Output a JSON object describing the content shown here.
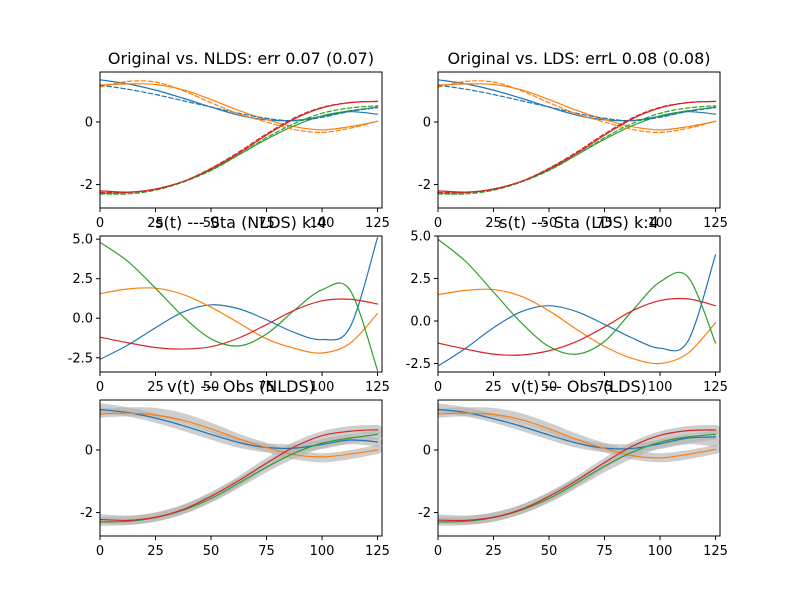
{
  "chart_data": [
    {
      "type": "line",
      "title": "Original vs. NLDS: err 0.07 (0.07)",
      "xlim": [
        0,
        127
      ],
      "ylim": [
        -2.75,
        1.6
      ],
      "xticks": [
        0,
        25,
        50,
        75,
        100,
        125
      ],
      "yticks": [
        -2,
        0
      ],
      "x": [
        0,
        12.5,
        25,
        37.5,
        50,
        62.5,
        75,
        87.5,
        100,
        112.5,
        125
      ],
      "series": [
        {
          "color": "#1f77b4",
          "style": "solid",
          "values": [
            1.35,
            1.22,
            1.02,
            0.76,
            0.48,
            0.22,
            0.07,
            0.05,
            0.18,
            0.33,
            0.25
          ]
        },
        {
          "color": "#ff7f0e",
          "style": "solid",
          "values": [
            1.18,
            1.22,
            1.2,
            1.03,
            0.72,
            0.37,
            0.08,
            -0.15,
            -0.25,
            -0.15,
            0.02
          ]
        },
        {
          "color": "#2ca02c",
          "style": "solid",
          "values": [
            -2.28,
            -2.26,
            -2.14,
            -1.9,
            -1.53,
            -1.05,
            -0.55,
            -0.12,
            0.2,
            0.36,
            0.48
          ]
        },
        {
          "color": "#d62728",
          "style": "solid",
          "values": [
            -2.2,
            -2.24,
            -2.15,
            -1.9,
            -1.5,
            -1.0,
            -0.42,
            0.1,
            0.45,
            0.62,
            0.66
          ]
        },
        {
          "color": "#1f77b4",
          "style": "dashed",
          "values": [
            1.18,
            1.05,
            0.88,
            0.68,
            0.48,
            0.28,
            0.12,
            0.04,
            0.15,
            0.34,
            0.46
          ]
        },
        {
          "color": "#ff7f0e",
          "style": "dashed",
          "values": [
            1.12,
            1.3,
            1.28,
            1.0,
            0.62,
            0.26,
            0.0,
            -0.24,
            -0.33,
            -0.2,
            0.03
          ]
        },
        {
          "color": "#2ca02c",
          "style": "dashed",
          "values": [
            -2.3,
            -2.3,
            -2.18,
            -1.92,
            -1.55,
            -1.05,
            -0.5,
            -0.05,
            0.28,
            0.45,
            0.52
          ]
        },
        {
          "color": "#d62728",
          "style": "dashed",
          "values": [
            -2.25,
            -2.25,
            -2.16,
            -1.9,
            -1.48,
            -0.96,
            -0.38,
            0.13,
            0.47,
            0.62,
            0.66
          ]
        }
      ]
    },
    {
      "type": "line",
      "title": "Original vs. LDS: errL 0.08 (0.08)",
      "xlim": [
        0,
        127
      ],
      "ylim": [
        -2.75,
        1.6
      ],
      "xticks": [
        0,
        25,
        50,
        75,
        100,
        125
      ],
      "yticks": [
        -2,
        0
      ],
      "x": [
        0,
        12.5,
        25,
        37.5,
        50,
        62.5,
        75,
        87.5,
        100,
        112.5,
        125
      ],
      "series": [
        {
          "color": "#1f77b4",
          "style": "solid",
          "values": [
            1.35,
            1.22,
            1.02,
            0.76,
            0.48,
            0.22,
            0.07,
            0.05,
            0.18,
            0.33,
            0.25
          ]
        },
        {
          "color": "#ff7f0e",
          "style": "solid",
          "values": [
            1.18,
            1.22,
            1.2,
            1.03,
            0.72,
            0.37,
            0.08,
            -0.15,
            -0.25,
            -0.15,
            0.02
          ]
        },
        {
          "color": "#2ca02c",
          "style": "solid",
          "values": [
            -2.28,
            -2.26,
            -2.14,
            -1.9,
            -1.53,
            -1.05,
            -0.55,
            -0.12,
            0.2,
            0.36,
            0.48
          ]
        },
        {
          "color": "#d62728",
          "style": "solid",
          "values": [
            -2.2,
            -2.24,
            -2.15,
            -1.9,
            -1.5,
            -1.0,
            -0.42,
            0.1,
            0.45,
            0.62,
            0.66
          ]
        },
        {
          "color": "#1f77b4",
          "style": "dashed",
          "values": [
            1.18,
            1.05,
            0.88,
            0.68,
            0.48,
            0.28,
            0.12,
            0.04,
            0.15,
            0.34,
            0.46
          ]
        },
        {
          "color": "#ff7f0e",
          "style": "dashed",
          "values": [
            1.12,
            1.3,
            1.28,
            1.0,
            0.62,
            0.26,
            0.0,
            -0.24,
            -0.33,
            -0.2,
            0.03
          ]
        },
        {
          "color": "#2ca02c",
          "style": "dashed",
          "values": [
            -2.3,
            -2.3,
            -2.18,
            -1.92,
            -1.55,
            -1.05,
            -0.5,
            -0.05,
            0.28,
            0.45,
            0.52
          ]
        },
        {
          "color": "#d62728",
          "style": "dashed",
          "values": [
            -2.25,
            -2.25,
            -2.16,
            -1.9,
            -1.48,
            -0.96,
            -0.38,
            0.13,
            0.47,
            0.62,
            0.66
          ]
        }
      ]
    },
    {
      "type": "line",
      "title": "s(t) --- Sta (NLDS) k:4",
      "xlim": [
        0,
        127
      ],
      "ylim": [
        -3.4,
        5.2
      ],
      "xticks": [
        0,
        25,
        50,
        75,
        100,
        125
      ],
      "yticks": [
        -2.5,
        0.0,
        2.5,
        5.0
      ],
      "x": [
        0,
        12.5,
        25,
        37.5,
        50,
        62.5,
        75,
        87.5,
        100,
        112.5,
        125
      ],
      "series": [
        {
          "color": "#1f77b4",
          "values": [
            -2.6,
            -1.7,
            -0.6,
            0.4,
            0.85,
            0.6,
            -0.1,
            -0.9,
            -1.35,
            -0.6,
            5.1
          ]
        },
        {
          "color": "#ff7f0e",
          "values": [
            1.55,
            1.85,
            1.9,
            1.5,
            0.7,
            -0.3,
            -1.3,
            -1.9,
            -2.2,
            -1.6,
            0.3
          ]
        },
        {
          "color": "#2ca02c",
          "values": [
            4.8,
            3.6,
            1.9,
            0.1,
            -1.3,
            -1.75,
            -1.0,
            0.5,
            1.8,
            1.8,
            -3.3
          ]
        },
        {
          "color": "#d62728",
          "values": [
            -1.2,
            -1.55,
            -1.85,
            -1.95,
            -1.8,
            -1.25,
            -0.4,
            0.5,
            1.1,
            1.2,
            0.9
          ]
        }
      ]
    },
    {
      "type": "line",
      "title": "s(t) --- Sta (LDS) k:4",
      "xlim": [
        0,
        127
      ],
      "ylim": [
        -3.0,
        5.0
      ],
      "xticks": [
        0,
        25,
        50,
        75,
        100,
        125
      ],
      "yticks": [
        -2.5,
        0.0,
        2.5,
        5.0
      ],
      "x": [
        0,
        12.5,
        25,
        37.5,
        50,
        62.5,
        75,
        87.5,
        100,
        112.5,
        125
      ],
      "series": [
        {
          "color": "#1f77b4",
          "values": [
            -2.65,
            -1.6,
            -0.4,
            0.55,
            0.9,
            0.55,
            -0.2,
            -1.0,
            -1.6,
            -1.2,
            3.9
          ]
        },
        {
          "color": "#ff7f0e",
          "values": [
            1.55,
            1.8,
            1.85,
            1.45,
            0.6,
            -0.5,
            -1.5,
            -2.2,
            -2.5,
            -1.9,
            -0.1
          ]
        },
        {
          "color": "#2ca02c",
          "values": [
            4.8,
            3.5,
            1.7,
            -0.1,
            -1.5,
            -1.95,
            -1.2,
            0.6,
            2.3,
            2.6,
            -1.3
          ]
        },
        {
          "color": "#d62728",
          "values": [
            -1.3,
            -1.65,
            -1.95,
            -2.0,
            -1.75,
            -1.2,
            -0.35,
            0.6,
            1.2,
            1.3,
            0.9
          ]
        }
      ]
    },
    {
      "type": "line",
      "title": "v(t) --- Obs (NLDS)",
      "xlim": [
        0,
        127
      ],
      "ylim": [
        -2.75,
        1.6
      ],
      "xticks": [
        0,
        25,
        50,
        75,
        100,
        125
      ],
      "yticks": [
        -2,
        0
      ],
      "x": [
        0,
        12.5,
        25,
        37.5,
        50,
        62.5,
        75,
        87.5,
        100,
        112.5,
        125
      ],
      "series": [
        {
          "color": "#b3b3b3",
          "style": "band",
          "values": [
            1.35,
            1.22,
            1.02,
            0.76,
            0.48,
            0.22,
            0.07,
            0.05,
            0.18,
            0.33,
            0.25
          ]
        },
        {
          "color": "#b3b3b3",
          "style": "band",
          "values": [
            1.18,
            1.22,
            1.2,
            1.03,
            0.72,
            0.37,
            0.08,
            -0.15,
            -0.25,
            -0.15,
            0.02
          ]
        },
        {
          "color": "#b3b3b3",
          "style": "band",
          "values": [
            -2.28,
            -2.26,
            -2.14,
            -1.9,
            -1.53,
            -1.05,
            -0.55,
            -0.12,
            0.2,
            0.36,
            0.48
          ]
        },
        {
          "color": "#b3b3b3",
          "style": "band",
          "values": [
            -2.2,
            -2.24,
            -2.15,
            -1.9,
            -1.5,
            -1.0,
            -0.42,
            0.1,
            0.45,
            0.62,
            0.66
          ]
        },
        {
          "color": "#1f77b4",
          "values": [
            1.3,
            1.2,
            1.02,
            0.78,
            0.5,
            0.24,
            0.08,
            0.06,
            0.18,
            0.32,
            0.26
          ]
        },
        {
          "color": "#ff7f0e",
          "values": [
            1.15,
            1.18,
            1.12,
            0.95,
            0.68,
            0.36,
            0.08,
            -0.15,
            -0.22,
            -0.13,
            0.0
          ]
        },
        {
          "color": "#2ca02c",
          "values": [
            -2.3,
            -2.28,
            -2.16,
            -1.92,
            -1.55,
            -1.06,
            -0.55,
            -0.1,
            0.22,
            0.38,
            0.5
          ]
        },
        {
          "color": "#d62728",
          "values": [
            -2.22,
            -2.25,
            -2.15,
            -1.9,
            -1.48,
            -0.98,
            -0.42,
            0.1,
            0.46,
            0.6,
            0.65
          ]
        }
      ]
    },
    {
      "type": "line",
      "title": "v(t) --- Obs (LDS)",
      "xlim": [
        0,
        127
      ],
      "ylim": [
        -2.75,
        1.6
      ],
      "xticks": [
        0,
        25,
        50,
        75,
        100,
        125
      ],
      "yticks": [
        -2,
        0
      ],
      "x": [
        0,
        12.5,
        25,
        37.5,
        50,
        62.5,
        75,
        87.5,
        100,
        112.5,
        125
      ],
      "series": [
        {
          "color": "#b3b3b3",
          "style": "band",
          "values": [
            1.35,
            1.22,
            1.02,
            0.76,
            0.48,
            0.22,
            0.07,
            0.05,
            0.18,
            0.33,
            0.25
          ]
        },
        {
          "color": "#b3b3b3",
          "style": "band",
          "values": [
            1.18,
            1.22,
            1.2,
            1.03,
            0.72,
            0.37,
            0.08,
            -0.15,
            -0.25,
            -0.15,
            0.02
          ]
        },
        {
          "color": "#b3b3b3",
          "style": "band",
          "values": [
            -2.28,
            -2.26,
            -2.14,
            -1.9,
            -1.53,
            -1.05,
            -0.55,
            -0.12,
            0.2,
            0.36,
            0.48
          ]
        },
        {
          "color": "#b3b3b3",
          "style": "band",
          "values": [
            -2.2,
            -2.24,
            -2.15,
            -1.9,
            -1.5,
            -1.0,
            -0.42,
            0.1,
            0.45,
            0.62,
            0.66
          ]
        },
        {
          "color": "#1f77b4",
          "values": [
            1.3,
            1.2,
            1.0,
            0.76,
            0.48,
            0.22,
            0.06,
            0.05,
            0.2,
            0.38,
            0.42
          ]
        },
        {
          "color": "#ff7f0e",
          "values": [
            1.15,
            1.18,
            1.14,
            0.97,
            0.68,
            0.34,
            0.05,
            -0.18,
            -0.25,
            -0.14,
            0.02
          ]
        },
        {
          "color": "#2ca02c",
          "values": [
            -2.3,
            -2.28,
            -2.16,
            -1.92,
            -1.55,
            -1.05,
            -0.52,
            -0.07,
            0.25,
            0.42,
            0.5
          ]
        },
        {
          "color": "#d62728",
          "values": [
            -2.24,
            -2.25,
            -2.15,
            -1.9,
            -1.48,
            -0.97,
            -0.4,
            0.12,
            0.47,
            0.62,
            0.64
          ]
        }
      ]
    }
  ]
}
